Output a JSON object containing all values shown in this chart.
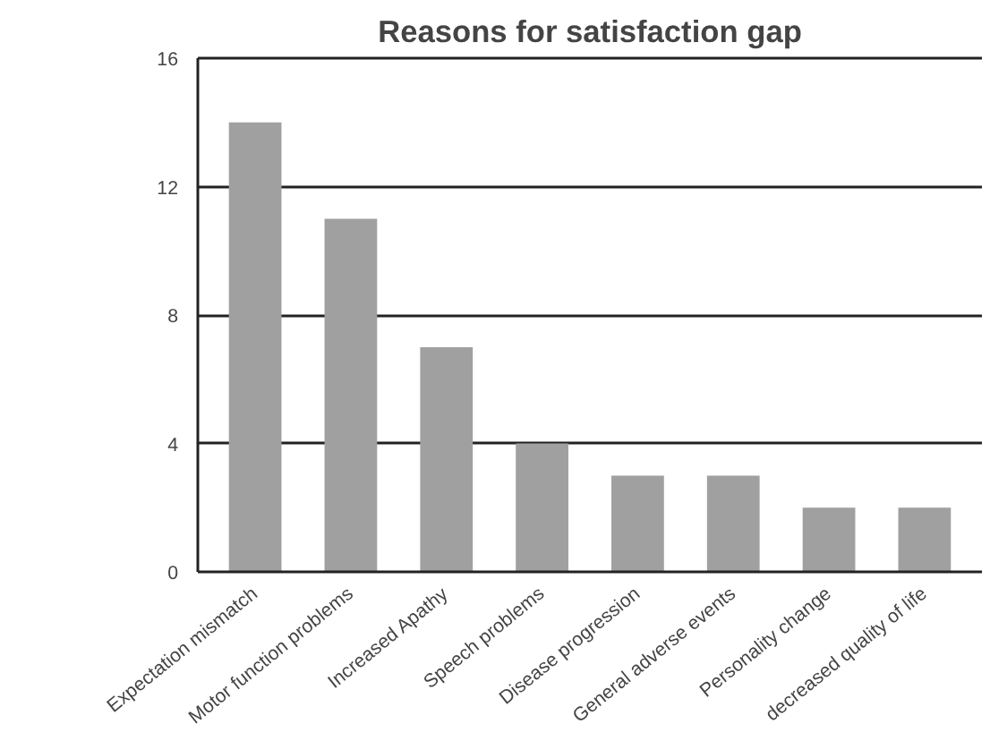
{
  "chart_data": {
    "type": "bar",
    "title": "Reasons for satisfaction gap",
    "categories": [
      "Expectation mismatch",
      "Motor function problems",
      "Increased Apathy",
      "Speech problems",
      "Disease progression",
      "General adverse events",
      "Personality change",
      "decreased quality of life"
    ],
    "values": [
      14,
      11,
      7,
      4,
      3,
      3,
      2,
      2
    ],
    "color": "#a0a0a0",
    "ylim": [
      0,
      16
    ],
    "yticks": [
      0,
      4,
      8,
      12,
      16
    ],
    "grid": "y"
  }
}
